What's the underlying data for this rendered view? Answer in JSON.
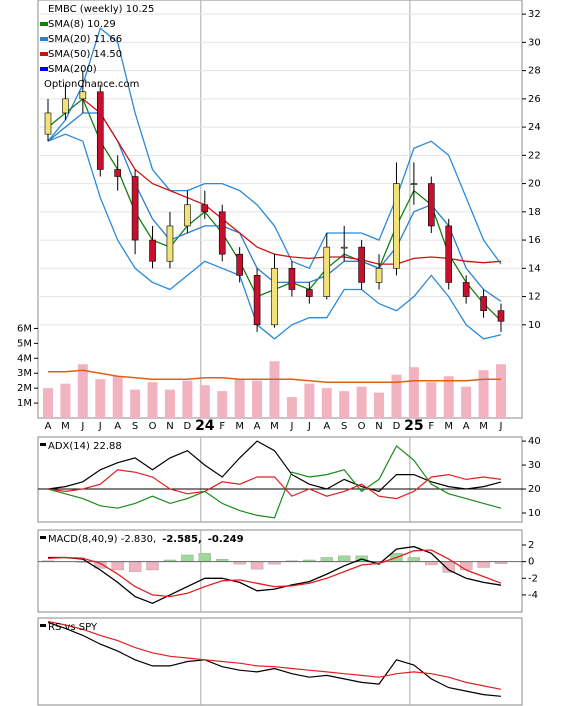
{
  "chart_data": [
    {
      "type": "candlestick",
      "title": "EMBC (weekly) 10.25",
      "annotation": "OptionChance.com",
      "categories": [
        "A",
        "M",
        "J",
        "J",
        "A",
        "S",
        "O",
        "N",
        "D",
        "24",
        "F",
        "M",
        "A",
        "M",
        "J",
        "J",
        "A",
        "S",
        "O",
        "N",
        "D",
        "25",
        "F",
        "M",
        "A",
        "M",
        "J"
      ],
      "open": [
        23.5,
        25,
        26,
        26.5,
        21,
        20.5,
        16,
        14.5,
        17,
        18.5,
        18,
        15,
        13.5,
        10,
        14,
        12.5,
        12,
        15.5,
        15.5,
        13,
        14,
        20,
        20,
        17,
        13,
        12,
        11
      ],
      "high": [
        26,
        27,
        28,
        27,
        22,
        21,
        17,
        18,
        19.5,
        19.5,
        18.5,
        15.5,
        14,
        15,
        14.5,
        13,
        16.5,
        17,
        16,
        15,
        21.5,
        21.5,
        20.5,
        17.5,
        13.5,
        12.5,
        11.5
      ],
      "low": [
        23,
        24.5,
        25,
        20.5,
        19.5,
        15,
        14,
        14,
        16.5,
        17.5,
        14.5,
        13,
        9.5,
        9.8,
        12,
        11.5,
        11.8,
        14.5,
        12.5,
        12.5,
        13.5,
        18.5,
        16.5,
        12.5,
        11.5,
        10.5,
        9.5
      ],
      "close": [
        25,
        26,
        26.5,
        21,
        20.5,
        16,
        14.5,
        17,
        18.5,
        18,
        15,
        13.5,
        10,
        14,
        12.5,
        12,
        15.5,
        15.5,
        13,
        14,
        20,
        20,
        17,
        13,
        12,
        11,
        10.25
      ],
      "up_color": "#f3e27a",
      "down_color": "#c8102e",
      "series": [
        {
          "name": "SMA(8) 10.29",
          "color": "#108010",
          "values": [
            24,
            25,
            26,
            23,
            21,
            18,
            16,
            15.5,
            17,
            18,
            16.5,
            14.5,
            12,
            12.5,
            13,
            12.5,
            14,
            15,
            14.5,
            14,
            17,
            19.5,
            18.5,
            15,
            13,
            11.5,
            10.29
          ]
        },
        {
          "name": "SMA(20) 11.66",
          "color": "#2a7fd0",
          "values": [
            23,
            24,
            25,
            25,
            23,
            20,
            17.5,
            16,
            16.5,
            17,
            17,
            16.5,
            14,
            13,
            13,
            13,
            13.5,
            14.5,
            14.5,
            14,
            15.5,
            18,
            18.5,
            17,
            14,
            12.5,
            11.66
          ]
        },
        {
          "name": "SMA(50) 14.50",
          "color": "#d01010",
          "values": [
            null,
            null,
            26,
            25,
            23,
            21,
            20,
            19.5,
            19,
            18.5,
            17.5,
            16.5,
            15.5,
            15,
            14.8,
            14.7,
            14.8,
            14.8,
            14.6,
            14.3,
            14.3,
            14.7,
            14.8,
            14.7,
            14.5,
            14.4,
            14.5
          ]
        },
        {
          "name": "SMA(200)",
          "color": "#0000e0",
          "values": [
            null,
            null,
            null,
            null,
            null,
            null,
            null,
            null,
            null,
            null,
            null,
            null,
            null,
            null,
            null,
            null,
            null,
            null,
            null,
            null,
            null,
            null,
            null,
            null,
            null,
            null,
            null
          ]
        }
      ],
      "bands": {
        "color": "#2a8ad8",
        "upper": [
          23,
          24.5,
          27,
          31,
          30,
          25,
          21,
          19.5,
          19.5,
          20,
          20,
          19.5,
          18.5,
          17,
          14.5,
          14,
          16.5,
          16.5,
          16.5,
          16,
          19,
          22.5,
          23,
          22,
          19,
          16,
          14.3
        ],
        "lower": [
          23,
          23.5,
          23,
          19,
          16,
          14,
          13,
          12.5,
          13.5,
          14.5,
          14,
          13.5,
          10,
          9,
          10,
          10.5,
          10.5,
          12.5,
          12.5,
          11.5,
          11,
          12,
          13.5,
          12,
          10,
          9,
          9.3
        ]
      },
      "ylim": [
        3.4,
        33
      ],
      "yticks": [
        10,
        12,
        14,
        16,
        18,
        20,
        22,
        24,
        26,
        28,
        30,
        32
      ],
      "grid": true
    },
    {
      "type": "bar",
      "values": [
        2.0,
        2.3,
        3.6,
        2.6,
        2.8,
        1.9,
        2.4,
        1.9,
        2.5,
        2.2,
        1.8,
        2.6,
        2.5,
        3.8,
        1.4,
        2.3,
        2.0,
        1.8,
        2.1,
        1.7,
        2.9,
        3.4,
        2.4,
        2.8,
        2.1,
        3.2,
        3.6
      ],
      "color": "#f2b3c0",
      "average": [
        3.1,
        3.1,
        3.2,
        3.0,
        2.8,
        2.7,
        2.6,
        2.6,
        2.6,
        2.7,
        2.7,
        2.6,
        2.6,
        2.6,
        2.6,
        2.5,
        2.4,
        2.4,
        2.4,
        2.4,
        2.4,
        2.5,
        2.5,
        2.5,
        2.5,
        2.6,
        2.6
      ],
      "average_color": "#e06010",
      "ylim": [
        0,
        28
      ],
      "yticks": [
        {
          "value": 1,
          "label": "1M"
        },
        {
          "value": 2,
          "label": "2M"
        },
        {
          "value": 3,
          "label": "3M"
        },
        {
          "value": 4,
          "label": "4M"
        },
        {
          "value": 5,
          "label": "5M"
        },
        {
          "value": 6,
          "label": "6M"
        }
      ]
    },
    {
      "type": "line",
      "title": "ADX(14) 22.88",
      "series": [
        {
          "color": "#000000",
          "values": [
            20,
            21,
            23,
            28,
            31,
            33,
            28,
            33,
            36,
            30,
            25,
            33,
            40,
            36,
            26,
            22,
            20,
            24,
            21,
            19,
            26,
            26,
            23,
            21,
            20,
            21,
            22.88
          ]
        },
        {
          "color": "#1a8a1a",
          "values": [
            20,
            18,
            16,
            13,
            12,
            14,
            17,
            14,
            16,
            19,
            14,
            11,
            9,
            8,
            27,
            25,
            26,
            28,
            19,
            24,
            38,
            32,
            22,
            18,
            16,
            14,
            12
          ]
        },
        {
          "color": "#e02020",
          "values": [
            20,
            19,
            20,
            22,
            28,
            27,
            25,
            20,
            18,
            19,
            23,
            22,
            25,
            25,
            17,
            20,
            17,
            19,
            22,
            17,
            16,
            19,
            25,
            26,
            24,
            25,
            24
          ]
        }
      ],
      "ylim": [
        6.25,
        41.7
      ],
      "yticks": [
        10,
        20,
        30,
        40
      ],
      "hline": 20
    },
    {
      "type": "macd",
      "series": [
        {
          "name": "MACD(8,40,9) -2.830,",
          "color": "#000000",
          "values": [
            0.5,
            0.5,
            0.3,
            -1,
            -2.5,
            -4.2,
            -5,
            -4,
            -3,
            -2,
            -2,
            -2.5,
            -3.5,
            -3.3,
            -2.8,
            -2.4,
            -1.5,
            -0.5,
            0.3,
            -0.3,
            1.5,
            1.8,
            1,
            -1,
            -2,
            -2.5,
            -2.83
          ]
        },
        {
          "name": "-2.585,",
          "color": "#e02020",
          "values": [
            0.4,
            0.5,
            0.4,
            -0.2,
            -1.5,
            -3,
            -4,
            -4.2,
            -3.8,
            -3,
            -2.3,
            -2.2,
            -2.6,
            -3,
            -2.9,
            -2.6,
            -2,
            -1.2,
            -0.4,
            -0.2,
            0.5,
            1.3,
            1.4,
            0.3,
            -1,
            -1.8,
            -2.585
          ]
        },
        {
          "name": "-0.249",
          "color": "#2050c0",
          "values": [
            0.1,
            0,
            -0.1,
            -0.8,
            -1,
            -1.2,
            -1,
            0.2,
            0.8,
            1,
            0.3,
            -0.3,
            -0.9,
            -0.3,
            0.1,
            0.2,
            0.5,
            0.7,
            0.7,
            -0.1,
            1,
            0.5,
            -0.4,
            -1.3,
            -1,
            -0.7,
            -0.249
          ]
        }
      ],
      "positive_color": "#9ed99a",
      "negative_color": "#f2b3c0",
      "ylim": [
        -6.05,
        3.8
      ],
      "yticks": [
        -4,
        -2,
        0,
        2
      ],
      "hline": 0
    },
    {
      "type": "line",
      "title": "RS vs SPY",
      "series": [
        {
          "color": "#000000",
          "values": [
            95,
            88,
            80,
            70,
            62,
            52,
            45,
            45,
            50,
            52,
            44,
            40,
            38,
            42,
            36,
            32,
            34,
            30,
            26,
            24,
            52,
            46,
            30,
            20,
            16,
            12,
            10
          ]
        },
        {
          "color": "#e02020",
          "values": [
            96,
            92,
            87,
            80,
            74,
            66,
            60,
            56,
            54,
            52,
            50,
            48,
            45,
            44,
            42,
            40,
            38,
            36,
            34,
            32,
            36,
            38,
            36,
            32,
            26,
            22,
            18
          ]
        }
      ],
      "ylim": [
        0,
        100
      ]
    }
  ]
}
